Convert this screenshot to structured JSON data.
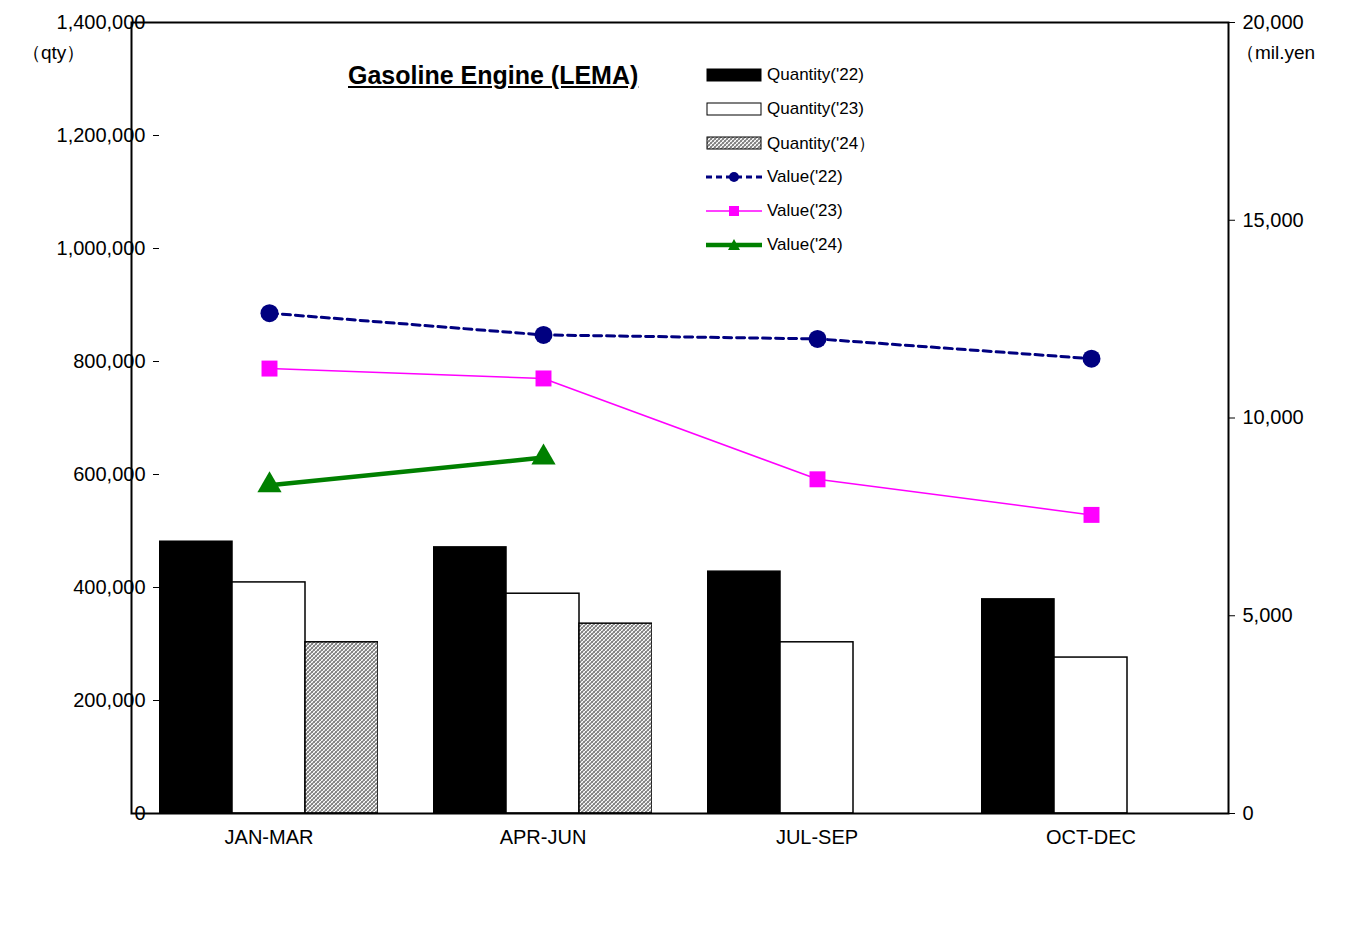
{
  "chart_data": {
    "type": "bar",
    "title": "Gasoline Engine (LEMA)",
    "categories": [
      "JAN-MAR",
      "APR-JUN",
      "JUL-SEP",
      "OCT-DEC"
    ],
    "ylabel": "（qty）",
    "y2label": "（mil.yen",
    "ylim": [
      0,
      1400000
    ],
    "yticks": [
      0,
      {
        "value": 200000,
        "label": "200,000"
      },
      {
        "value": 400000,
        "label": "400,000"
      },
      {
        "value": 600000,
        "label": "600,000"
      },
      {
        "value": 800000,
        "label": "800,000"
      },
      {
        "value": 1000000,
        "label": "1,000,000"
      },
      {
        "value": 1200000,
        "label": "1,200,000"
      },
      {
        "value": 1400000,
        "label": "1,400,000"
      }
    ],
    "y2lim": [
      0,
      20000
    ],
    "y2ticks": [
      0,
      {
        "value": 5000,
        "label": "5,000"
      },
      {
        "value": 10000,
        "label": "10,000"
      },
      {
        "value": 15000,
        "label": "15,000"
      },
      {
        "value": 20000,
        "label": "20,000"
      }
    ],
    "grid": false,
    "legend": "top-right",
    "series": [
      {
        "name": "Quantity('22)",
        "type": "bar",
        "color": "#000000",
        "values": [
          481000,
          471000,
          428000,
          379000
        ]
      },
      {
        "name": "Quantity('23)",
        "type": "bar",
        "color": "#ffffff",
        "values": [
          409000,
          389000,
          303000,
          276000
        ]
      },
      {
        "name": "Quantity('24）",
        "type": "bar",
        "color": "#7f7f7f",
        "marker": "hatch",
        "values": [
          303000,
          336000,
          null,
          null
        ]
      },
      {
        "name": "Value('22)",
        "type": "line",
        "axis": "y2",
        "color": "#000080",
        "marker": "circle",
        "line_style": "dashed",
        "values": [
          12650,
          12100,
          12000,
          11500
        ]
      },
      {
        "name": "Value('23)",
        "type": "line",
        "axis": "y2",
        "color": "#ff00ff",
        "marker": "square",
        "line_style": "solid",
        "values": [
          11250,
          11000,
          8450,
          7550
        ]
      },
      {
        "name": "Value('24)",
        "type": "line",
        "axis": "y2",
        "color": "#008000",
        "marker": "triangle",
        "line_style": "solid",
        "values": [
          8300,
          9000,
          null,
          null
        ]
      }
    ]
  }
}
